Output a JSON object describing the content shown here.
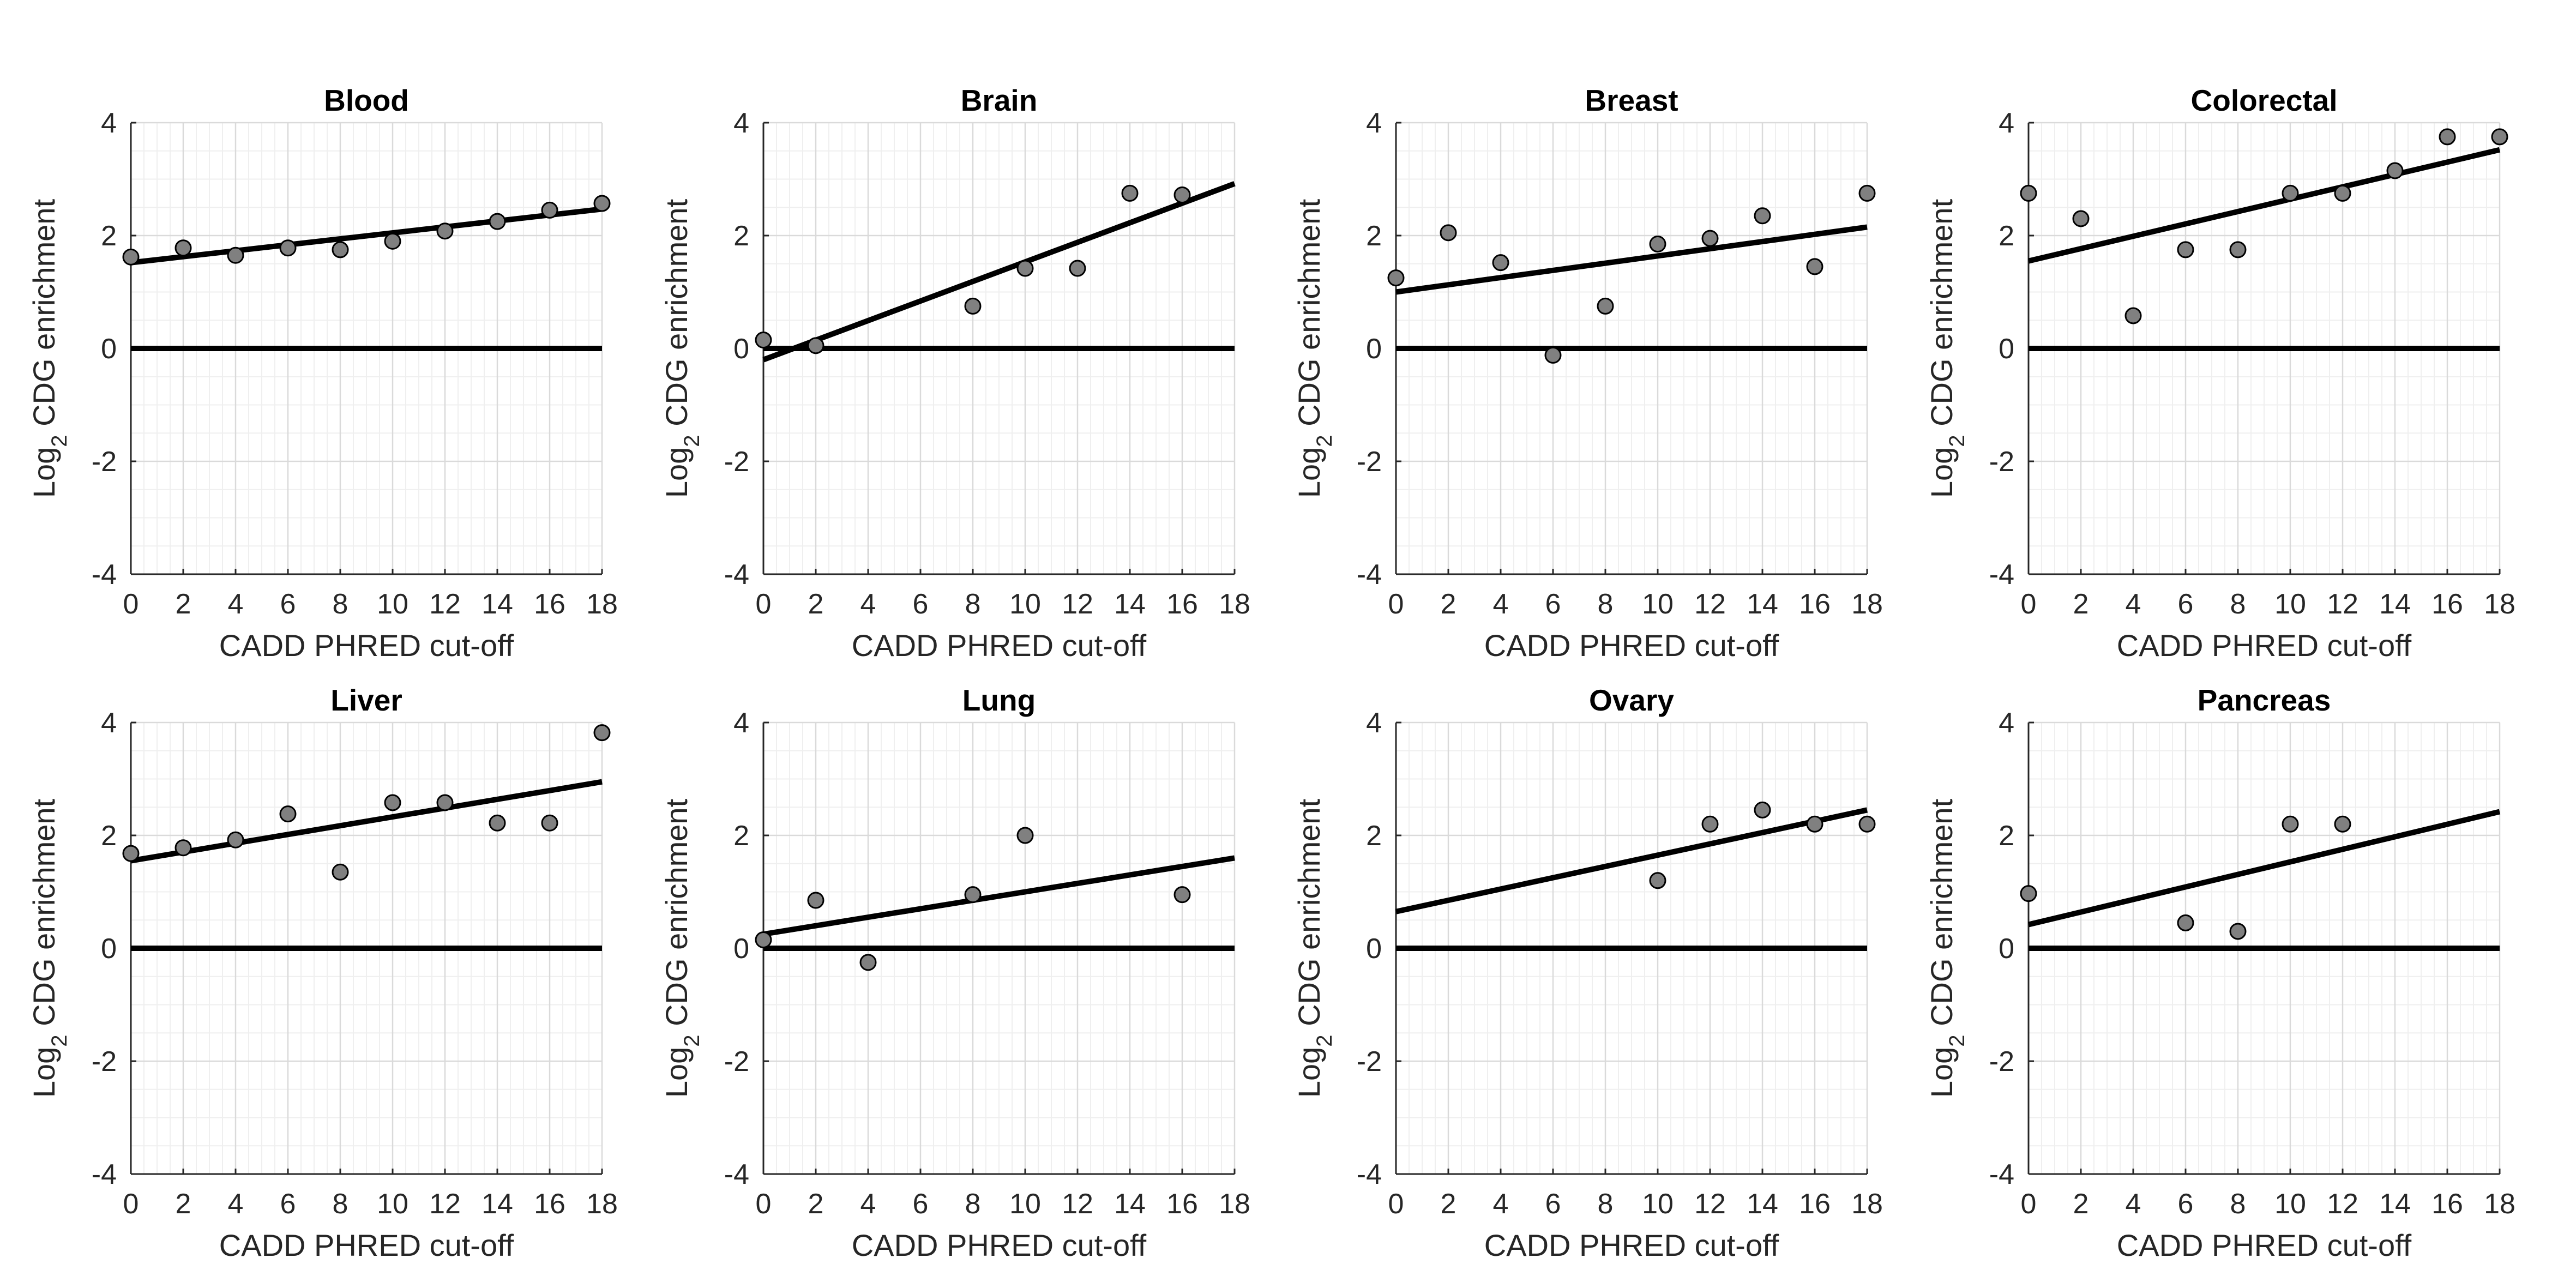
{
  "figure": {
    "colors": {
      "marker_fill": "#808080",
      "marker_edge": "#000000",
      "line": "#000000",
      "grid_major": "#dadada",
      "grid_minor": "#efefef",
      "axis": "#262626"
    }
  },
  "chart_data": [
    {
      "type": "scatter",
      "title": "Blood",
      "xlabel": "CADD PHRED cut-off",
      "ylabel_prefix": "Log",
      "ylabel_subscript": "2",
      "ylabel_suffix": " CDG enrichment",
      "xlim": [
        0,
        18
      ],
      "ylim": [
        -4,
        4
      ],
      "xticks": [
        "0",
        "2",
        "4",
        "6",
        "8",
        "10",
        "12",
        "14",
        "16",
        "18"
      ],
      "yticks": [
        "-4",
        "-2",
        "0",
        "2",
        "4"
      ],
      "reference_y": 0,
      "points": {
        "x": [
          0,
          2,
          4,
          6,
          8,
          10,
          12,
          14,
          16,
          18
        ],
        "y": [
          1.62,
          1.78,
          1.65,
          1.78,
          1.75,
          1.9,
          2.08,
          2.25,
          2.45,
          2.57
        ]
      },
      "fit": {
        "x": [
          0,
          18
        ],
        "y": [
          1.52,
          2.47
        ]
      }
    },
    {
      "type": "scatter",
      "title": "Brain",
      "xlabel": "CADD PHRED cut-off",
      "ylabel_prefix": "Log",
      "ylabel_subscript": "2",
      "ylabel_suffix": " CDG enrichment",
      "xlim": [
        0,
        18
      ],
      "ylim": [
        -4,
        4
      ],
      "xticks": [
        "0",
        "2",
        "4",
        "6",
        "8",
        "10",
        "12",
        "14",
        "16",
        "18"
      ],
      "yticks": [
        "-4",
        "-2",
        "0",
        "2",
        "4"
      ],
      "reference_y": 0,
      "points": {
        "x": [
          0,
          2,
          8,
          10,
          12,
          14,
          16
        ],
        "y": [
          0.15,
          0.05,
          0.75,
          1.42,
          1.42,
          2.75,
          2.72
        ]
      },
      "fit": {
        "x": [
          0,
          18
        ],
        "y": [
          -0.2,
          2.92
        ]
      }
    },
    {
      "type": "scatter",
      "title": "Breast",
      "xlabel": "CADD PHRED cut-off",
      "ylabel_prefix": "Log",
      "ylabel_subscript": "2",
      "ylabel_suffix": " CDG enrichment",
      "xlim": [
        0,
        18
      ],
      "ylim": [
        -4,
        4
      ],
      "xticks": [
        "0",
        "2",
        "4",
        "6",
        "8",
        "10",
        "12",
        "14",
        "16",
        "18"
      ],
      "yticks": [
        "-4",
        "-2",
        "0",
        "2",
        "4"
      ],
      "reference_y": 0,
      "points": {
        "x": [
          0,
          2,
          4,
          6,
          8,
          10,
          12,
          14,
          16,
          18
        ],
        "y": [
          1.25,
          2.05,
          1.52,
          -0.12,
          0.75,
          1.85,
          1.95,
          2.35,
          1.45,
          2.75
        ]
      },
      "fit": {
        "x": [
          0,
          18
        ],
        "y": [
          1.0,
          2.15
        ]
      }
    },
    {
      "type": "scatter",
      "title": "Colorectal",
      "xlabel": "CADD PHRED cut-off",
      "ylabel_prefix": "Log",
      "ylabel_subscript": "2",
      "ylabel_suffix": " CDG enrichment",
      "xlim": [
        0,
        18
      ],
      "ylim": [
        -4,
        4
      ],
      "xticks": [
        "0",
        "2",
        "4",
        "6",
        "8",
        "10",
        "12",
        "14",
        "16",
        "18"
      ],
      "yticks": [
        "-4",
        "-2",
        "0",
        "2",
        "4"
      ],
      "reference_y": 0,
      "points": {
        "x": [
          0,
          2,
          4,
          6,
          8,
          10,
          12,
          14,
          16,
          18
        ],
        "y": [
          2.75,
          2.3,
          0.58,
          1.75,
          1.75,
          2.75,
          2.75,
          3.15,
          3.75,
          3.75
        ]
      },
      "fit": {
        "x": [
          0,
          18
        ],
        "y": [
          1.55,
          3.52
        ]
      }
    },
    {
      "type": "scatter",
      "title": "Liver",
      "xlabel": "CADD PHRED cut-off",
      "ylabel_prefix": "Log",
      "ylabel_subscript": "2",
      "ylabel_suffix": " CDG enrichment",
      "xlim": [
        0,
        18
      ],
      "ylim": [
        -4,
        4
      ],
      "xticks": [
        "0",
        "2",
        "4",
        "6",
        "8",
        "10",
        "12",
        "14",
        "16",
        "18"
      ],
      "yticks": [
        "-4",
        "-2",
        "0",
        "2",
        "4"
      ],
      "reference_y": 0,
      "points": {
        "x": [
          0,
          2,
          4,
          6,
          8,
          10,
          12,
          14,
          16,
          18
        ],
        "y": [
          1.68,
          1.78,
          1.92,
          2.38,
          1.35,
          2.58,
          2.58,
          2.22,
          2.22,
          3.82
        ]
      },
      "fit": {
        "x": [
          0,
          18
        ],
        "y": [
          1.55,
          2.95
        ]
      }
    },
    {
      "type": "scatter",
      "title": "Lung",
      "xlabel": "CADD PHRED cut-off",
      "ylabel_prefix": "Log",
      "ylabel_subscript": "2",
      "ylabel_suffix": " CDG enrichment",
      "xlim": [
        0,
        18
      ],
      "ylim": [
        -4,
        4
      ],
      "xticks": [
        "0",
        "2",
        "4",
        "6",
        "8",
        "10",
        "12",
        "14",
        "16",
        "18"
      ],
      "yticks": [
        "-4",
        "-2",
        "0",
        "2",
        "4"
      ],
      "reference_y": 0,
      "points": {
        "x": [
          0,
          2,
          4,
          8,
          10,
          16
        ],
        "y": [
          0.15,
          0.85,
          -0.25,
          0.95,
          2.0,
          0.95
        ]
      },
      "fit": {
        "x": [
          0,
          18
        ],
        "y": [
          0.25,
          1.6
        ]
      }
    },
    {
      "type": "scatter",
      "title": "Ovary",
      "xlabel": "CADD PHRED cut-off",
      "ylabel_prefix": "Log",
      "ylabel_subscript": "2",
      "ylabel_suffix": " CDG enrichment",
      "xlim": [
        0,
        18
      ],
      "ylim": [
        -4,
        4
      ],
      "xticks": [
        "0",
        "2",
        "4",
        "6",
        "8",
        "10",
        "12",
        "14",
        "16",
        "18"
      ],
      "yticks": [
        "-4",
        "-2",
        "0",
        "2",
        "4"
      ],
      "reference_y": 0,
      "points": {
        "x": [
          10,
          12,
          14,
          16,
          18
        ],
        "y": [
          1.2,
          2.2,
          2.45,
          2.2,
          2.2
        ]
      },
      "fit": {
        "x": [
          0,
          18
        ],
        "y": [
          0.65,
          2.45
        ]
      }
    },
    {
      "type": "scatter",
      "title": "Pancreas",
      "xlabel": "CADD PHRED cut-off",
      "ylabel_prefix": "Log",
      "ylabel_subscript": "2",
      "ylabel_suffix": " CDG enrichment",
      "xlim": [
        0,
        18
      ],
      "ylim": [
        -4,
        4
      ],
      "xticks": [
        "0",
        "2",
        "4",
        "6",
        "8",
        "10",
        "12",
        "14",
        "16",
        "18"
      ],
      "yticks": [
        "-4",
        "-2",
        "0",
        "2",
        "4"
      ],
      "reference_y": 0,
      "points": {
        "x": [
          0,
          6,
          8,
          10,
          12
        ],
        "y": [
          0.97,
          0.45,
          0.3,
          2.2,
          2.2
        ]
      },
      "fit": {
        "x": [
          0,
          18
        ],
        "y": [
          0.42,
          2.42
        ]
      }
    }
  ]
}
